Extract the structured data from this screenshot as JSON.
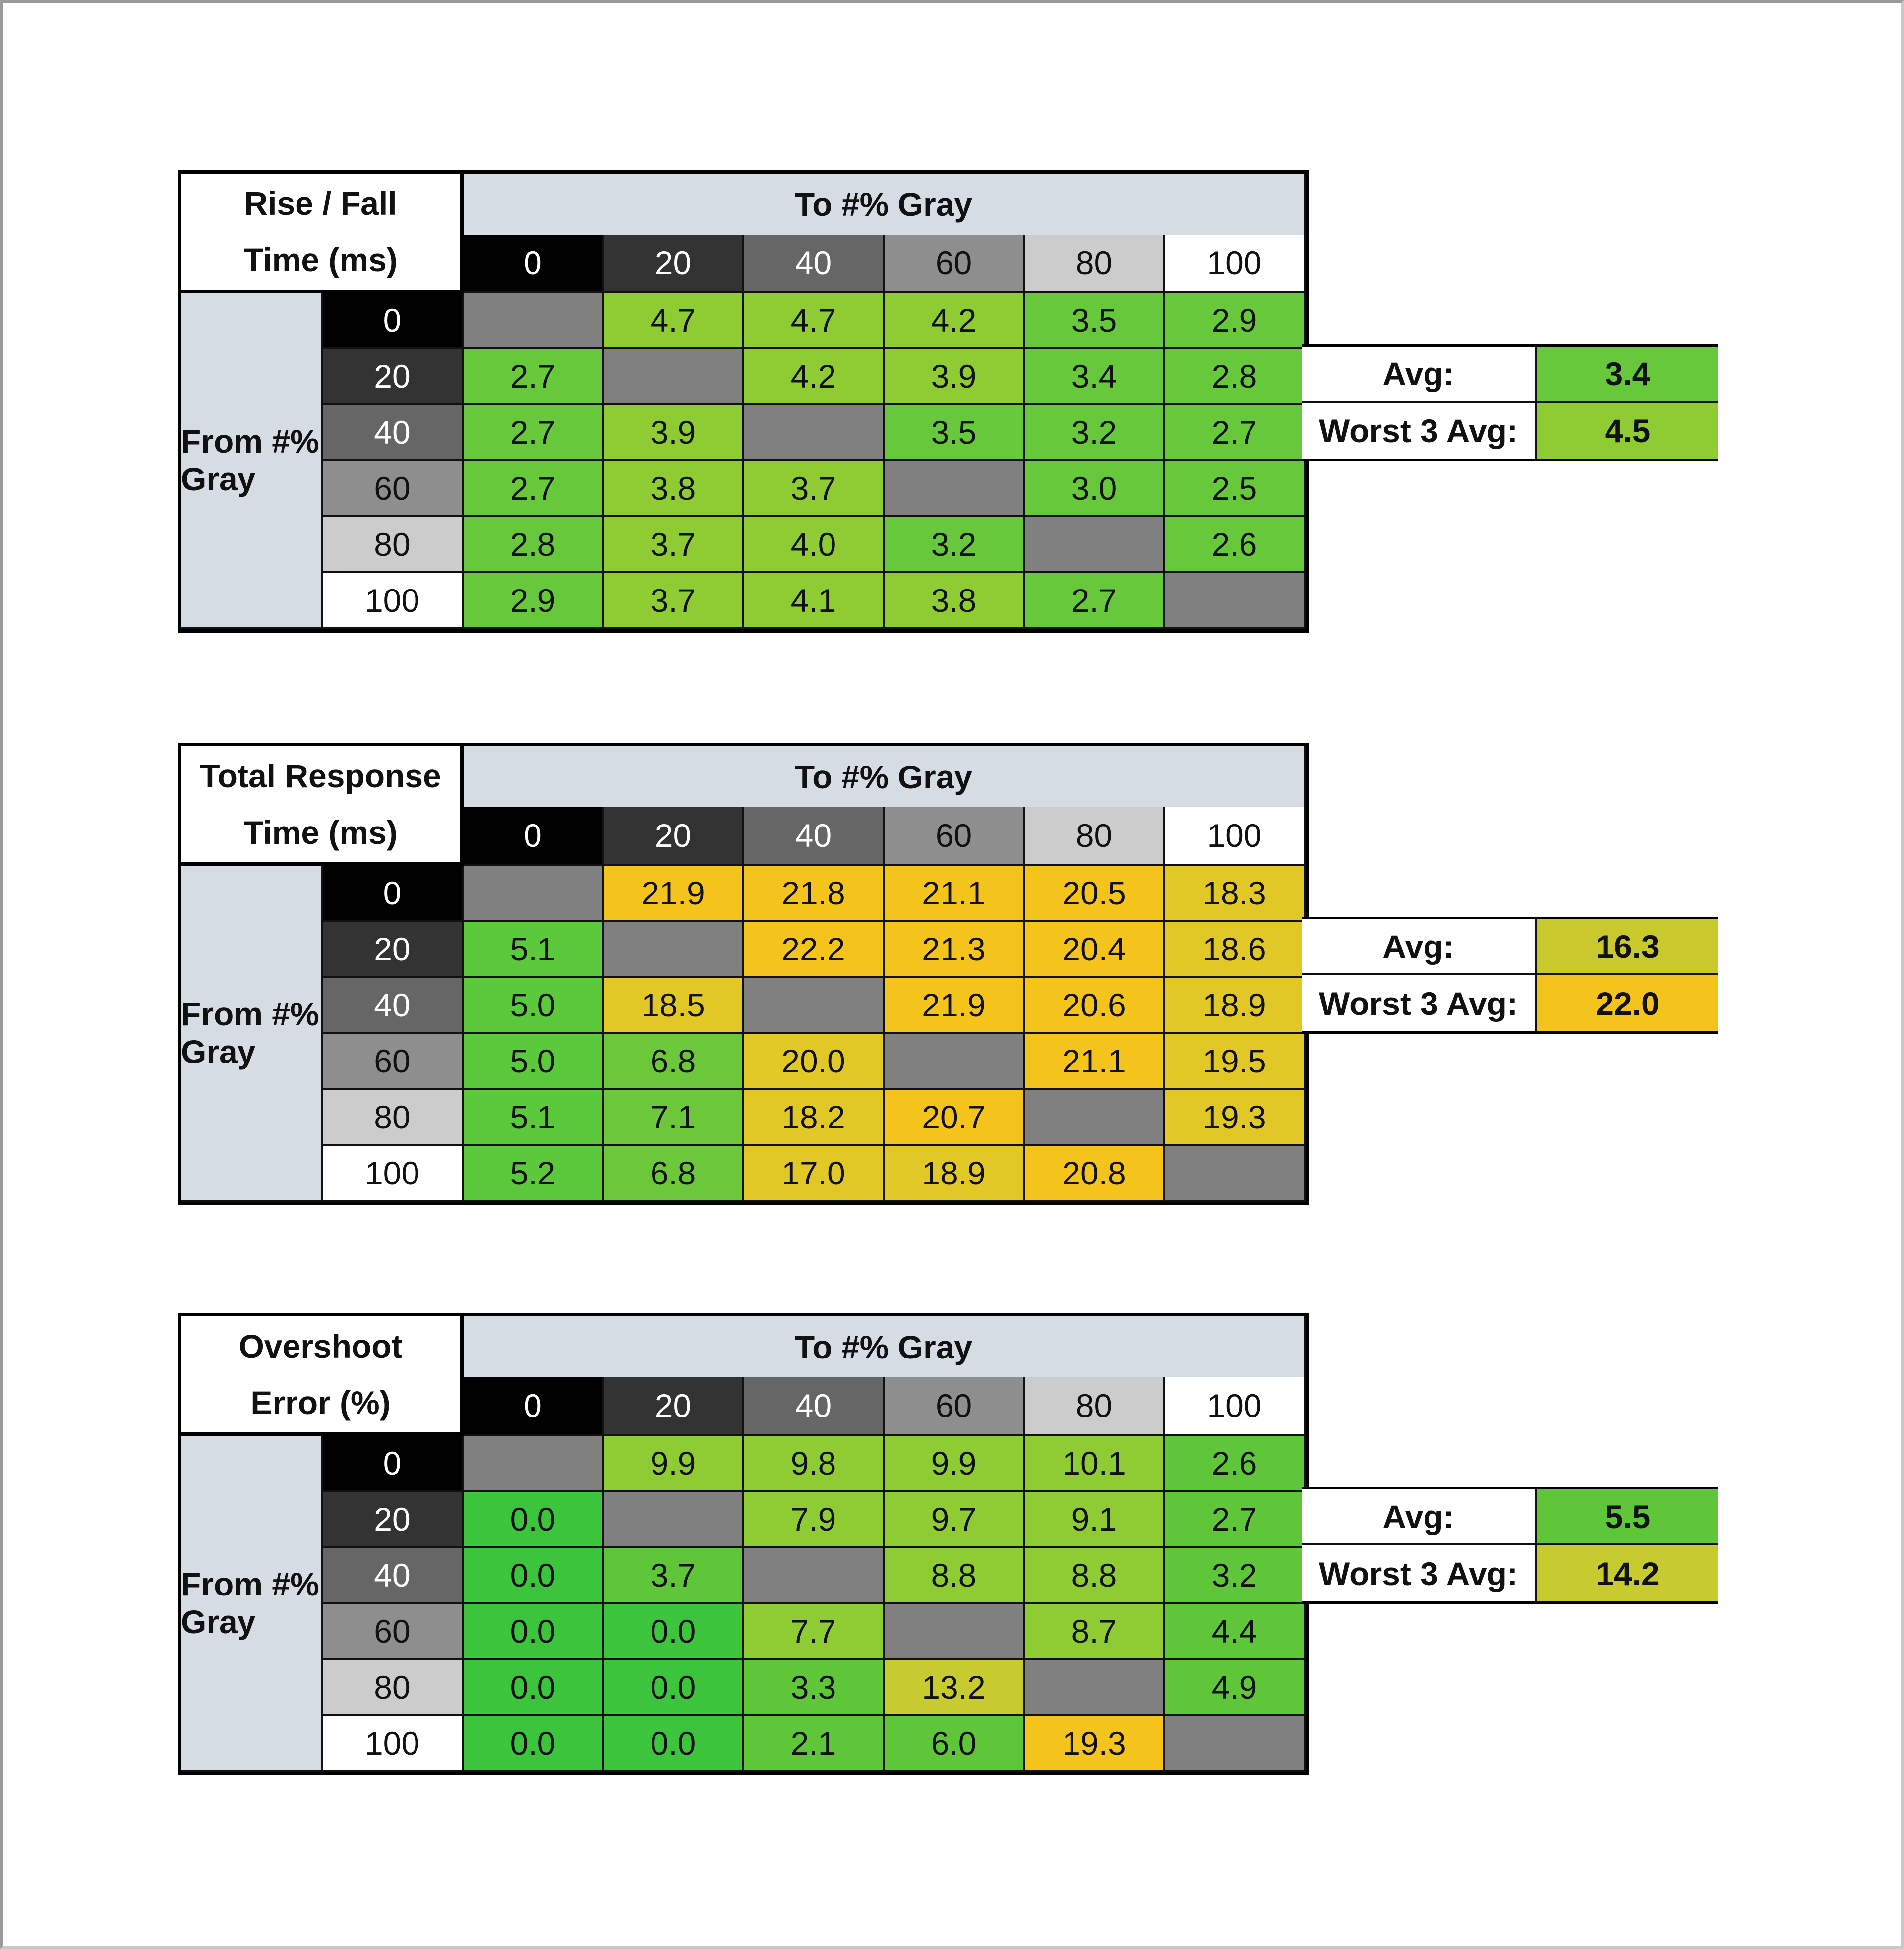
{
  "tables": [
    {
      "title_line1": "Rise / Fall",
      "title_line2": "Time (ms)",
      "to_label": "To #% Gray",
      "from_label": "From #% Gray",
      "levels": [
        "0",
        "20",
        "40",
        "60",
        "80",
        "100"
      ],
      "rows": [
        [
          null,
          "4.7",
          "4.7",
          "4.2",
          "3.5",
          "2.9"
        ],
        [
          "2.7",
          null,
          "4.2",
          "3.9",
          "3.4",
          "2.8"
        ],
        [
          "2.7",
          "3.9",
          null,
          "3.5",
          "3.2",
          "2.7"
        ],
        [
          "2.7",
          "3.8",
          "3.7",
          null,
          "3.0",
          "2.5"
        ],
        [
          "2.8",
          "3.7",
          "4.0",
          "3.2",
          null,
          "2.6"
        ],
        [
          "2.9",
          "3.7",
          "4.1",
          "3.8",
          "2.7",
          null
        ]
      ],
      "avg_label": "Avg:",
      "avg_value": "3.4",
      "worst_label": "Worst 3 Avg:",
      "worst_value": "4.5",
      "color_scale": [
        {
          "max": 3.6,
          "color": "#66c83a"
        },
        {
          "max": 99,
          "color": "#8fcc34"
        }
      ]
    },
    {
      "title_line1": "Total Response",
      "title_line2": "Time (ms)",
      "to_label": "To #% Gray",
      "from_label": "From #% Gray",
      "levels": [
        "0",
        "20",
        "40",
        "60",
        "80",
        "100"
      ],
      "rows": [
        [
          null,
          "21.9",
          "21.8",
          "21.1",
          "20.5",
          "18.3"
        ],
        [
          "5.1",
          null,
          "22.2",
          "21.3",
          "20.4",
          "18.6"
        ],
        [
          "5.0",
          "18.5",
          null,
          "21.9",
          "20.6",
          "18.9"
        ],
        [
          "5.0",
          "6.8",
          "20.0",
          null,
          "21.1",
          "19.5"
        ],
        [
          "5.1",
          "7.1",
          "18.2",
          "20.7",
          null,
          "19.3"
        ],
        [
          "5.2",
          "6.8",
          "17.0",
          "18.9",
          "20.8",
          null
        ]
      ],
      "avg_label": "Avg:",
      "avg_value": "16.3",
      "worst_label": "Worst 3 Avg:",
      "worst_value": "22.0",
      "color_scale": [
        {
          "max": 6,
          "color": "#5cc83c"
        },
        {
          "max": 8,
          "color": "#6cc83a"
        },
        {
          "max": 16.5,
          "color": "#c9c92e"
        },
        {
          "max": 20,
          "color": "#e2c826"
        },
        {
          "max": 99,
          "color": "#f5c41c"
        }
      ]
    },
    {
      "title_line1": "Overshoot",
      "title_line2": "Error (%)",
      "to_label": "To #% Gray",
      "from_label": "From #% Gray",
      "levels": [
        "0",
        "20",
        "40",
        "60",
        "80",
        "100"
      ],
      "rows": [
        [
          null,
          "9.9",
          "9.8",
          "9.9",
          "10.1",
          "2.6"
        ],
        [
          "0.0",
          null,
          "7.9",
          "9.7",
          "9.1",
          "2.7"
        ],
        [
          "0.0",
          "3.7",
          null,
          "8.8",
          "8.8",
          "3.2"
        ],
        [
          "0.0",
          "0.0",
          "7.7",
          null,
          "8.7",
          "4.4"
        ],
        [
          "0.0",
          "0.0",
          "3.3",
          "13.2",
          null,
          "4.9"
        ],
        [
          "0.0",
          "0.0",
          "2.1",
          "6.0",
          "19.3",
          null
        ]
      ],
      "avg_label": "Avg:",
      "avg_value": "5.5",
      "worst_label": "Worst 3 Avg:",
      "worst_value": "14.2",
      "color_scale": [
        {
          "max": 0.5,
          "color": "#3cc43c"
        },
        {
          "max": 7,
          "color": "#5fc63a"
        },
        {
          "max": 11,
          "color": "#8fcc34"
        },
        {
          "max": 16,
          "color": "#c8cb30"
        },
        {
          "max": 99,
          "color": "#f5c41c"
        }
      ]
    }
  ],
  "colors": {
    "level_bg": [
      "#000000",
      "#333333",
      "#666666",
      "#8e8e8e",
      "#cccccc",
      "#ffffff"
    ],
    "level_fg": [
      "#ffffff",
      "#ffffff",
      "#ffffff",
      "#111111",
      "#111111",
      "#111111"
    ],
    "diagonal": "#808080",
    "header_band": "#d6dce4"
  }
}
